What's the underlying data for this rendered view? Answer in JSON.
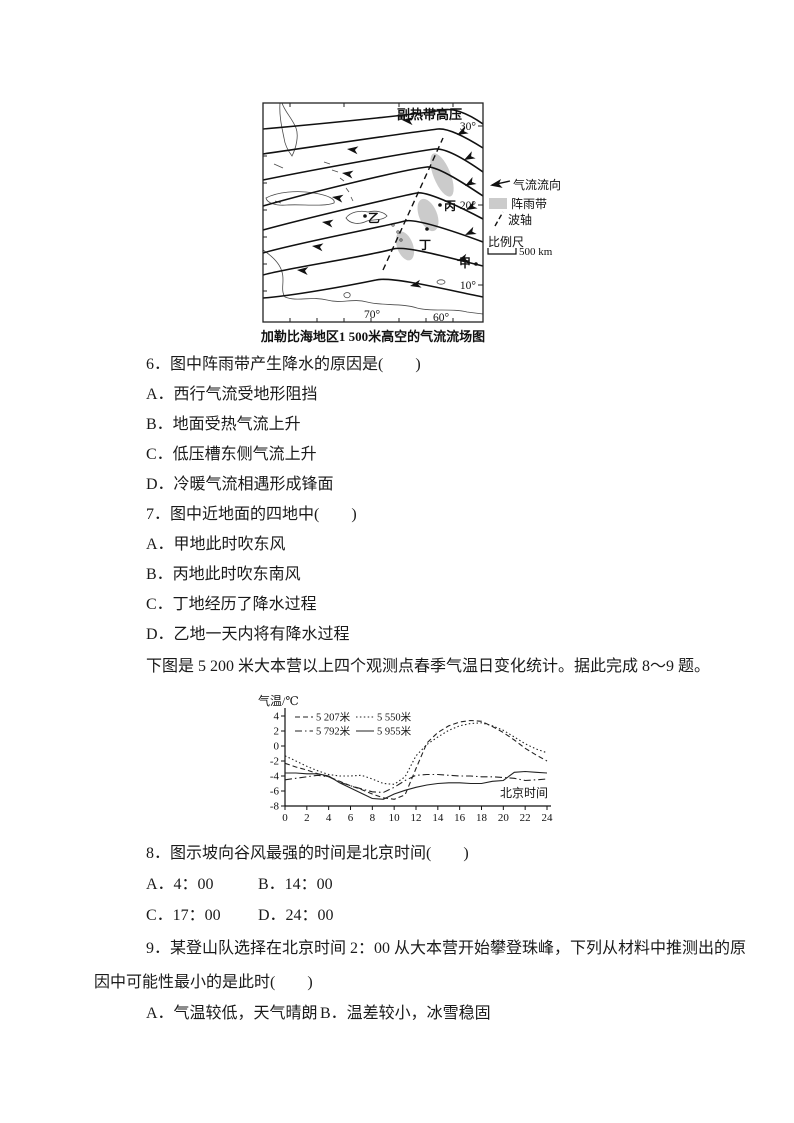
{
  "page": {
    "bg": "#ffffff",
    "ink": "#1a1a1a",
    "gray_band": "#cbcbcb"
  },
  "map_figure": {
    "caption": "加勒比海地区1 500米高空的气流流场图",
    "pressure_label": "副热带高压",
    "lat_labels": [
      "30°",
      "20°",
      "10°"
    ],
    "lon_labels": [
      "70°",
      "60°"
    ],
    "points": [
      {
        "name": "乙"
      },
      {
        "name": "丙"
      },
      {
        "name": "丁"
      },
      {
        "name": "甲"
      }
    ],
    "legend": {
      "flow": "气流流向",
      "shower": "阵雨带",
      "axis": "波轴",
      "scale_label": "比例尺",
      "scale_value": "500 km"
    }
  },
  "questions": {
    "q6": {
      "text": "6．图中阵雨带产生降水的原因是(　　)",
      "options": [
        "A．西行气流受地形阻挡",
        "B．地面受热气流上升",
        "C．低压槽东侧气流上升",
        "D．冷暖气流相遇形成锋面"
      ]
    },
    "q7": {
      "text": "7．图中近地面的四地中(　　)",
      "options": [
        "A．甲地此时吹东风",
        "B．丙地此时吹东南风",
        "C．丁地经历了降水过程",
        "D．乙地一天内将有降水过程"
      ]
    },
    "intro89": "下图是 5 200 米大本营以上四个观测点春季气温日变化统计。据此完成 8～9 题。",
    "q8": {
      "text": "8．图示坡向谷风最强的时间是北京时间(　　)",
      "options": [
        "A．4：00",
        "B．14：00",
        "C．17：00",
        "D．24：00"
      ]
    },
    "q9": {
      "line1": "9．某登山队选择在北京时间 2：00 从大本营开始攀登珠峰，下列从材料中推测出的原",
      "line2": "因中可能性最小的是此时(　　)",
      "options": [
        "A．气温较低，天气晴朗",
        "B．温差较小，冰雪稳固"
      ]
    }
  },
  "chart_data": {
    "type": "line",
    "title": "四个观测点春季气温日变化",
    "ylabel": "气温/℃",
    "xlabel": "北京时间",
    "xlim": [
      0,
      24
    ],
    "ylim": [
      -8,
      4
    ],
    "xticks": [
      0,
      2,
      4,
      6,
      8,
      10,
      12,
      14,
      16,
      18,
      20,
      22,
      24
    ],
    "yticks": [
      4,
      2,
      0,
      -2,
      -4,
      -6,
      -8
    ],
    "grid": false,
    "legend_position": "top-left-inside",
    "x": [
      0,
      1,
      2,
      3,
      4,
      5,
      6,
      7,
      8,
      9,
      10,
      11,
      12,
      13,
      14,
      15,
      16,
      17,
      18,
      19,
      20,
      21,
      22,
      23,
      24
    ],
    "series": [
      {
        "name": "5 207米",
        "style": "dashed",
        "values": [
          -2.3,
          -2.8,
          -3.2,
          -3.7,
          -4.1,
          -4.7,
          -5.3,
          -5.8,
          -6.4,
          -6.9,
          -7.1,
          -6.5,
          -3.0,
          0.4,
          1.8,
          2.7,
          3.2,
          3.4,
          3.3,
          2.6,
          1.8,
          0.8,
          -0.3,
          -1.2,
          -2.0
        ]
      },
      {
        "name": "5 550米",
        "style": "dotted",
        "values": [
          -1.3,
          -2.0,
          -2.7,
          -3.3,
          -3.8,
          -4.0,
          -4.0,
          -3.9,
          -4.4,
          -5.0,
          -5.1,
          -4.1,
          -1.3,
          0.2,
          1.2,
          2.1,
          2.7,
          3.0,
          3.1,
          2.7,
          2.1,
          1.2,
          0.3,
          -0.4,
          -0.9
        ]
      },
      {
        "name": "5 792米",
        "style": "dashdot",
        "values": [
          -4.5,
          -4.3,
          -4.1,
          -3.9,
          -4.1,
          -4.8,
          -5.3,
          -5.7,
          -6.1,
          -6.2,
          -5.5,
          -4.6,
          -3.9,
          -3.8,
          -3.8,
          -3.9,
          -4.0,
          -4.0,
          -4.1,
          -4.1,
          -4.2,
          -4.3,
          -4.6,
          -4.5,
          -4.4
        ]
      },
      {
        "name": "5 955米",
        "style": "solid",
        "values": [
          -3.6,
          -3.6,
          -3.7,
          -3.7,
          -4.0,
          -4.9,
          -5.6,
          -6.3,
          -7.0,
          -7.1,
          -6.4,
          -5.9,
          -5.5,
          -5.2,
          -5.0,
          -4.9,
          -4.9,
          -5.0,
          -5.0,
          -4.7,
          -4.6,
          -3.5,
          -3.4,
          -3.5,
          -3.6
        ]
      }
    ]
  }
}
